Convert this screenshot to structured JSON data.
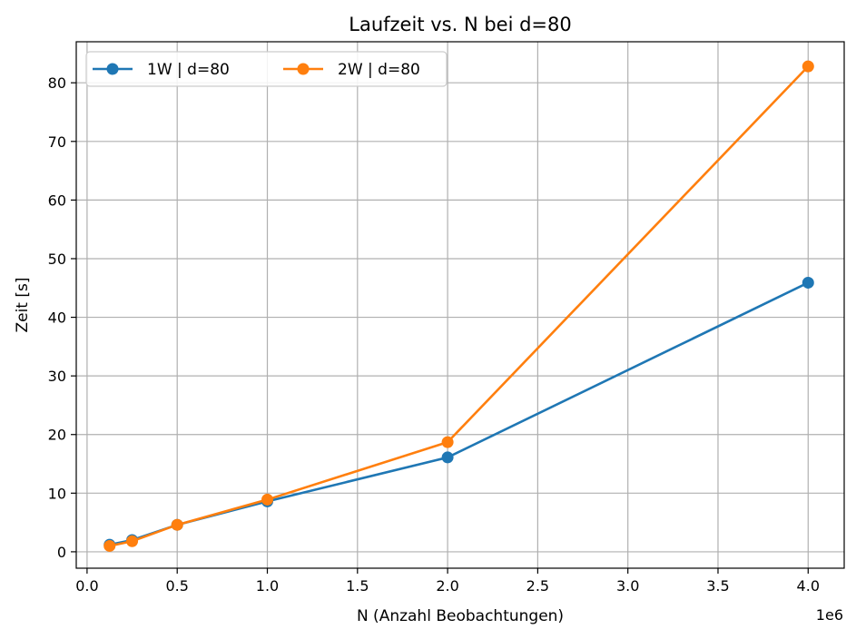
{
  "chart_data": {
    "type": "line",
    "title": "Laufzeit vs. N bei d=80",
    "xlabel": "N (Anzahl Beobachtungen)",
    "ylabel": "Zeit [s]",
    "x_offset_label": "1e6",
    "xlim": [
      -0.06,
      4.2
    ],
    "ylim": [
      -2.8,
      87
    ],
    "x_scale_factor": 1000000,
    "xticks": [
      0.0,
      0.5,
      1.0,
      1.5,
      2.0,
      2.5,
      3.0,
      3.5,
      4.0
    ],
    "xtick_labels": [
      "0.0",
      "0.5",
      "1.0",
      "1.5",
      "2.0",
      "2.5",
      "3.0",
      "3.5",
      "4.0"
    ],
    "yticks": [
      0,
      10,
      20,
      30,
      40,
      50,
      60,
      70,
      80
    ],
    "ytick_labels": [
      "0",
      "10",
      "20",
      "30",
      "40",
      "50",
      "60",
      "70",
      "80"
    ],
    "grid": true,
    "legend_position": "top-left",
    "x": [
      125000,
      250000,
      500000,
      1000000,
      2000000,
      4000000
    ],
    "series": [
      {
        "name": "1W | d=80",
        "color": "#1f77b4",
        "values": [
          1.2,
          2.0,
          4.6,
          8.6,
          16.1,
          45.9
        ]
      },
      {
        "name": "2W | d=80",
        "color": "#ff7f0e",
        "values": [
          1.0,
          1.8,
          4.6,
          8.9,
          18.7,
          82.8
        ]
      }
    ]
  }
}
